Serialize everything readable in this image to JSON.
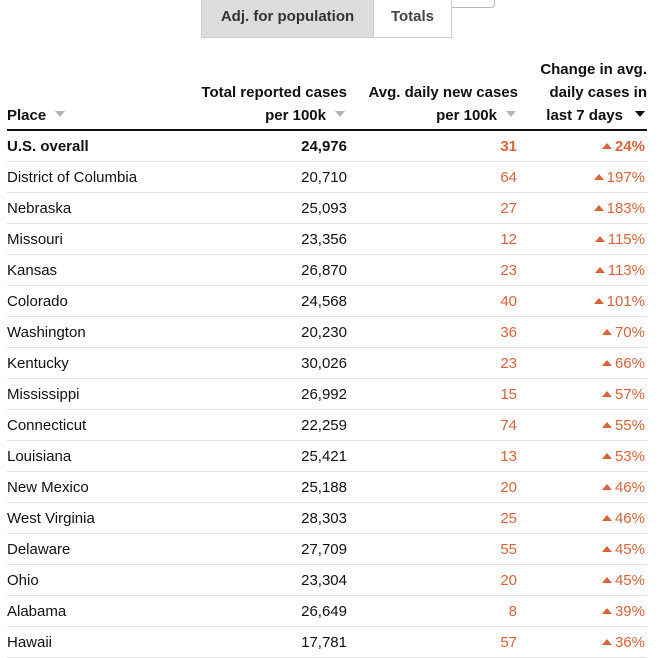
{
  "toggle": {
    "active_label": "Adj. for population",
    "inactive_label": "Totals"
  },
  "columns": {
    "place": "Place",
    "total_line1": "Total reported cases",
    "total_line2": "per 100k",
    "avg_line1": "Avg. daily new cases",
    "avg_line2": "per 100k",
    "change_line1": "Change in avg.",
    "change_line2": "daily cases in",
    "change_line3": "last 7 days"
  },
  "colors": {
    "accent": "#d8643a",
    "active_toggle_bg": "#dcdcdc"
  },
  "rows": [
    {
      "place": "U.S. overall",
      "total": "24,976",
      "avg": "31",
      "change": "24%",
      "bold": true
    },
    {
      "place": "District of Columbia",
      "total": "20,710",
      "avg": "64",
      "change": "197%"
    },
    {
      "place": "Nebraska",
      "total": "25,093",
      "avg": "27",
      "change": "183%"
    },
    {
      "place": "Missouri",
      "total": "23,356",
      "avg": "12",
      "change": "115%"
    },
    {
      "place": "Kansas",
      "total": "26,870",
      "avg": "23",
      "change": "113%"
    },
    {
      "place": "Colorado",
      "total": "24,568",
      "avg": "40",
      "change": "101%"
    },
    {
      "place": "Washington",
      "total": "20,230",
      "avg": "36",
      "change": "70%"
    },
    {
      "place": "Kentucky",
      "total": "30,026",
      "avg": "23",
      "change": "66%"
    },
    {
      "place": "Mississippi",
      "total": "26,992",
      "avg": "15",
      "change": "57%"
    },
    {
      "place": "Connecticut",
      "total": "22,259",
      "avg": "74",
      "change": "55%"
    },
    {
      "place": "Louisiana",
      "total": "25,421",
      "avg": "13",
      "change": "53%"
    },
    {
      "place": "New Mexico",
      "total": "25,188",
      "avg": "20",
      "change": "46%"
    },
    {
      "place": "West Virginia",
      "total": "28,303",
      "avg": "25",
      "change": "46%"
    },
    {
      "place": "Delaware",
      "total": "27,709",
      "avg": "55",
      "change": "45%"
    },
    {
      "place": "Ohio",
      "total": "23,304",
      "avg": "20",
      "change": "45%"
    },
    {
      "place": "Alabama",
      "total": "26,649",
      "avg": "8",
      "change": "39%"
    },
    {
      "place": "Hawaii",
      "total": "17,781",
      "avg": "57",
      "change": "36%"
    }
  ]
}
